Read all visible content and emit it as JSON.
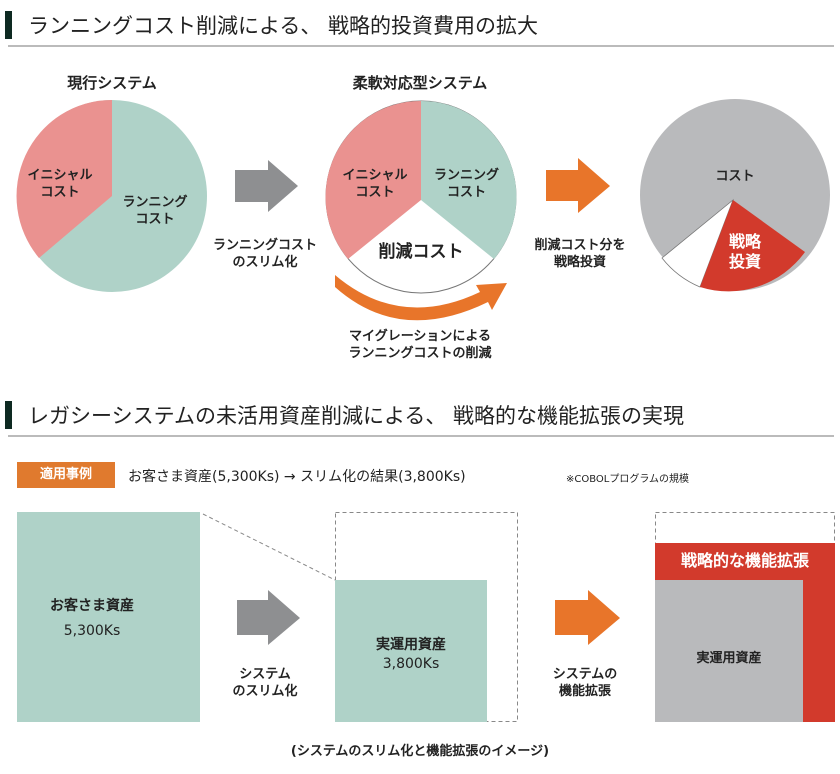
{
  "section1": {
    "title": "ランニングコスト削減による、 戦略的投資費用の拡大",
    "current": {
      "heading": "現行システム",
      "initial": [
        "イニシャル",
        "コスト"
      ],
      "running": [
        "ランニング",
        "コスト"
      ]
    },
    "arrow1_caption": [
      "ランニングコスト",
      "のスリム化"
    ],
    "flexible": {
      "heading": "柔軟対応型システム",
      "initial": [
        "イニシャル",
        "コスト"
      ],
      "running": [
        "ランニング",
        "コスト"
      ],
      "reduced": "削減コスト"
    },
    "migration_caption": [
      "マイグレーションによる",
      "ランニングコストの削減"
    ],
    "arrow2_caption": [
      "削減コスト分を",
      "戦略投資"
    ],
    "result": {
      "cost": "コスト",
      "invest": [
        "戦略",
        "投資"
      ]
    }
  },
  "section2": {
    "title": "レガシーシステムの未活用資産削減による、 戦略的な機能拡張の実現",
    "tag": "適用事例",
    "summary": "お客さま資産(5,300Ks) → スリム化の結果(3,800Ks)",
    "note": "※COBOLプログラムの規模",
    "customer_assets": {
      "label": "お客さま資産",
      "value": "5,300Ks"
    },
    "slim_caption": [
      "システム",
      "のスリム化"
    ],
    "operating_assets": {
      "label": "実運用資産",
      "value": "3,800Ks"
    },
    "expand_caption": [
      "システムの",
      "機能拡張"
    ],
    "strategic_expansion": "戦略的な機能拡張",
    "operating_assets_right": "実運用資産",
    "caption": "(システムのスリム化と機能拡張のイメージ)"
  },
  "colors": {
    "pink": "#ea9290",
    "teal": "#afd2c8",
    "gray": "#b9babc",
    "red": "#d23a2c",
    "orange": "#e8752a",
    "arrow_gray": "#8e8f91",
    "dark_green": "#0e2a22"
  }
}
